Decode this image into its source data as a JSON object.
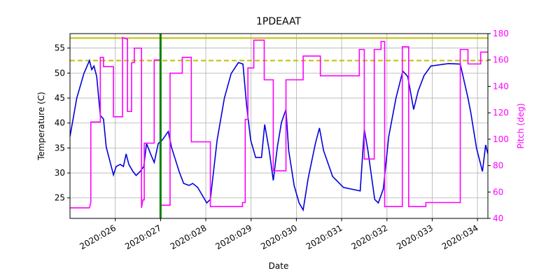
{
  "chart_data": {
    "type": "line",
    "title": "1PDEAAT",
    "xlabel": "Date",
    "ylabel": "Temperature (C)",
    "y2label": "Pitch (deg)",
    "y2color": "#ff00ff",
    "xlim": [
      25.0,
      34.23
    ],
    "xticks": [
      {
        "value": 26,
        "label": "2020:026"
      },
      {
        "value": 27,
        "label": "2020:027"
      },
      {
        "value": 28,
        "label": "2020:028"
      },
      {
        "value": 29,
        "label": "2020:029"
      },
      {
        "value": 30,
        "label": "2020:030"
      },
      {
        "value": 31,
        "label": "2020:031"
      },
      {
        "value": 32,
        "label": "2020:032"
      },
      {
        "value": 33,
        "label": "2020:033"
      },
      {
        "value": 34,
        "label": "2020:034"
      }
    ],
    "ylim": [
      20.9,
      57.9
    ],
    "yticks": [
      25,
      30,
      35,
      40,
      45,
      50,
      55
    ],
    "y2lim": [
      40,
      180
    ],
    "y2ticks": [
      40,
      60,
      80,
      100,
      120,
      140,
      160,
      180
    ],
    "grid": true,
    "hlines": [
      {
        "value": 57,
        "color": "#bfbf00",
        "dashed": false
      },
      {
        "value": 52.5,
        "color": "#bfbf00",
        "dashed": true
      }
    ],
    "vlines": [
      {
        "value": 27.0,
        "color": "#008000"
      }
    ],
    "series": [
      {
        "name": "Temperature",
        "color": "#0000dd",
        "axis": "y",
        "x": [
          25.0,
          25.15,
          25.31,
          25.43,
          25.48,
          25.53,
          25.59,
          25.67,
          25.74,
          25.8,
          25.9,
          25.96,
          26.02,
          26.11,
          26.18,
          26.24,
          26.3,
          26.39,
          26.46,
          26.55,
          26.63,
          26.69,
          26.78,
          26.86,
          26.95,
          27.04,
          27.17,
          27.24,
          27.41,
          27.51,
          27.63,
          27.71,
          27.82,
          28.02,
          28.1,
          28.25,
          28.41,
          28.56,
          28.72,
          28.82,
          28.9,
          28.99,
          29.1,
          29.23,
          29.3,
          29.4,
          29.49,
          29.58,
          29.67,
          29.77,
          29.83,
          29.95,
          30.06,
          30.15,
          30.26,
          30.42,
          30.51,
          30.6,
          30.8,
          31.04,
          31.41,
          31.5,
          31.58,
          31.73,
          31.81,
          31.92,
          32.04,
          32.2,
          32.35,
          32.46,
          32.59,
          32.69,
          32.82,
          32.97,
          33.36,
          33.62,
          33.79,
          33.85,
          33.98,
          34.11,
          34.18,
          34.23
        ],
        "values": [
          37.3,
          45,
          50,
          52.5,
          50.7,
          51.4,
          49.3,
          41.5,
          40.8,
          35.2,
          31.7,
          29.6,
          31.3,
          31.7,
          31.3,
          33.8,
          31.7,
          30.3,
          29.5,
          30.3,
          31.3,
          35.9,
          33.8,
          32.1,
          35.9,
          36.6,
          38.3,
          35.2,
          30.3,
          27.9,
          27.5,
          27.9,
          27.1,
          24.0,
          24.7,
          36.6,
          45,
          49.9,
          52.1,
          51.8,
          43.6,
          36.6,
          33.1,
          33.1,
          39.7,
          34.5,
          28.5,
          35.2,
          40.1,
          42.7,
          34.5,
          27.5,
          24.0,
          22.6,
          28.9,
          35.9,
          39.0,
          34.5,
          29.3,
          27.1,
          26.4,
          38.7,
          34.5,
          24.7,
          24.0,
          26.8,
          37.3,
          45,
          50.4,
          49.3,
          42.7,
          46.4,
          49.5,
          51.4,
          51.9,
          51.8,
          45,
          42.2,
          34.9,
          30.3,
          35.6,
          33.8
        ]
      },
      {
        "name": "Pitch",
        "color": "#ff00ff",
        "axis": "y2",
        "x": [
          25.0,
          25.43,
          25.46,
          25.46,
          25.67,
          25.67,
          25.74,
          25.74,
          25.96,
          25.96,
          26.16,
          26.16,
          26.24,
          26.27,
          26.27,
          26.36,
          26.36,
          26.42,
          26.42,
          26.58,
          26.58,
          26.61,
          26.64,
          26.64,
          26.86,
          26.86,
          27.0,
          27.0,
          27.21,
          27.21,
          27.48,
          27.48,
          27.68,
          27.68,
          28.1,
          28.1,
          28.81,
          28.81,
          28.87,
          28.87,
          28.93,
          28.93,
          29.06,
          29.06,
          29.29,
          29.29,
          29.49,
          29.49,
          29.77,
          29.77,
          30.15,
          30.15,
          30.53,
          30.53,
          31.39,
          31.39,
          31.5,
          31.5,
          31.72,
          31.72,
          31.87,
          31.87,
          31.95,
          31.95,
          32.34,
          32.34,
          32.48,
          32.48,
          32.86,
          32.86,
          33.62,
          33.62,
          33.79,
          33.79,
          34.07,
          34.07,
          34.23
        ],
        "values": [
          48,
          48,
          52,
          113,
          113,
          162,
          162,
          155,
          155,
          117,
          117,
          177,
          176,
          176,
          121,
          121,
          158,
          158,
          169,
          169,
          48,
          54,
          54,
          97,
          97,
          160,
          160,
          50,
          50,
          150,
          150,
          162,
          162,
          98,
          98,
          49,
          49,
          52,
          52,
          115,
          115,
          154,
          154,
          175,
          175,
          145,
          145,
          76,
          76,
          145,
          145,
          163,
          163,
          148,
          148,
          168,
          168,
          85,
          85,
          168,
          168,
          174,
          174,
          49,
          49,
          170,
          170,
          49,
          49,
          52,
          52,
          168,
          168,
          157,
          157,
          166,
          166
        ]
      }
    ]
  }
}
